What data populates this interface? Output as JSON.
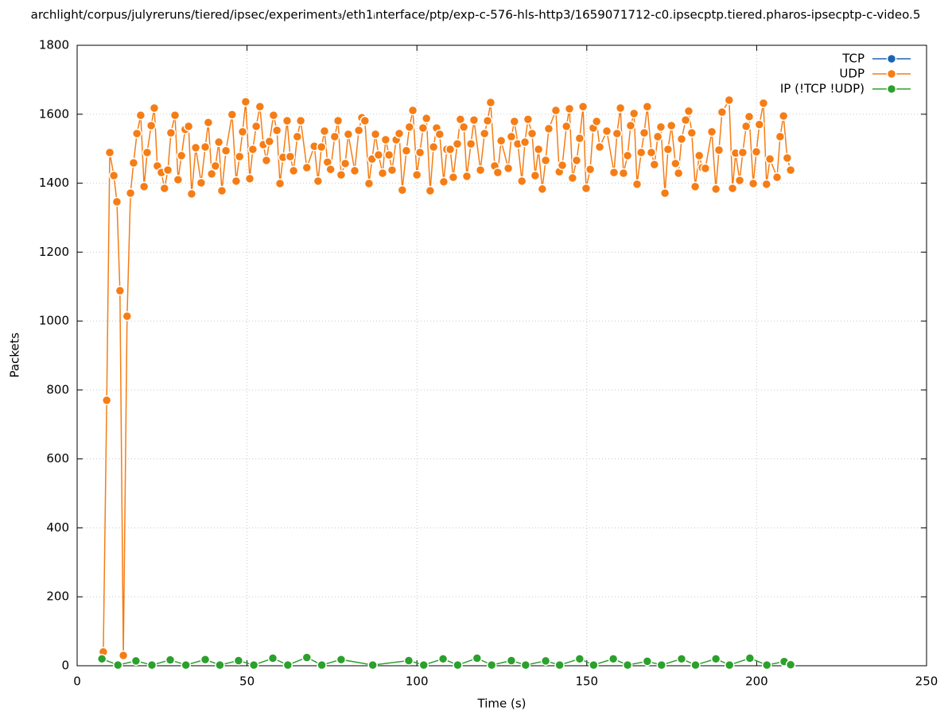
{
  "chart_data": {
    "type": "line",
    "title": "archlight/corpus/julyreruns/tiered/ipsec/experiment₃/eth1ᵢnterface/ptp/exp-c-576-hls-http3/1659071712-c0.ipsecptp.tiered.pharos-ipsecptp-c-video.5",
    "x_label": "Time (s)",
    "y_label": "Packets",
    "xlim": [
      0,
      250
    ],
    "xticks": [
      0,
      50,
      100,
      150,
      200,
      250
    ],
    "ylim": [
      0,
      1800
    ],
    "yticks": [
      0,
      200,
      400,
      600,
      800,
      1000,
      1200,
      1400,
      1600,
      1800
    ],
    "grid": true,
    "legend": "top right",
    "series": [
      {
        "name": "TCP",
        "color": "#1f63b0",
        "x": [],
        "values": []
      },
      {
        "name": "UDP",
        "color": "#f57d15",
        "x": [
          7.7,
          8.7,
          9.6,
          10.8,
          11.7,
          12.6,
          13.6,
          14.7,
          15.7,
          16.6,
          17.6,
          18.7,
          19.7,
          20.6,
          21.8,
          22.7,
          23.6,
          24.8,
          25.7,
          26.7,
          27.6,
          28.8,
          29.7,
          30.7,
          31.8,
          32.8,
          33.7,
          34.9,
          36.5,
          37.7,
          38.6,
          39.6,
          40.7,
          41.7,
          42.6,
          43.8,
          45.6,
          46.8,
          47.8,
          48.7,
          49.6,
          50.8,
          51.7,
          52.7,
          53.8,
          54.8,
          55.7,
          56.6,
          57.8,
          58.8,
          59.7,
          60.6,
          61.8,
          62.7,
          63.7,
          64.8,
          65.8,
          67.6,
          69.8,
          70.9,
          71.9,
          72.8,
          73.7,
          74.6,
          75.8,
          76.8,
          77.7,
          78.9,
          79.8,
          81.7,
          82.9,
          83.8,
          84.7,
          85.9,
          86.8,
          87.8,
          88.7,
          89.9,
          90.8,
          91.8,
          92.7,
          93.9,
          94.8,
          95.7,
          96.9,
          97.8,
          98.8,
          100,
          100.9,
          101.8,
          102.8,
          103.9,
          104.9,
          105.8,
          106.7,
          107.9,
          108.8,
          109.8,
          110.7,
          111.9,
          112.8,
          113.8,
          114.7,
          115.9,
          116.8,
          118.7,
          119.9,
          120.8,
          121.7,
          122.9,
          123.8,
          124.8,
          126.9,
          127.8,
          128.7,
          129.7,
          130.9,
          131.8,
          132.7,
          133.9,
          134.8,
          135.8,
          136.9,
          137.9,
          138.8,
          140.9,
          141.9,
          142.8,
          144.0,
          144.9,
          145.8,
          147.0,
          147.9,
          148.9,
          149.8,
          151.0,
          151.9,
          152.9,
          153.8,
          155.9,
          158.0,
          158.9,
          159.9,
          160.8,
          162.0,
          162.9,
          163.9,
          164.8,
          166.0,
          166.9,
          167.8,
          169.0,
          169.9,
          170.9,
          171.8,
          173.0,
          173.9,
          174.9,
          176.1,
          177.0,
          177.9,
          179.1,
          180.0,
          180.9,
          181.9,
          183.1,
          184.0,
          184.9,
          186.8,
          188.0,
          188.9,
          189.8,
          191.9,
          192.9,
          193.8,
          195.0,
          195.9,
          196.9,
          197.8,
          199.0,
          199.9,
          200.8,
          202.0,
          202.9,
          203.9,
          206.0,
          206.9,
          207.9,
          209.0,
          210.0
        ],
        "values": [
          40,
          770,
          1489,
          1422,
          1346,
          1088,
          30,
          1014,
          1371,
          1459,
          1544,
          1597,
          1390,
          1489,
          1567,
          1618,
          1450,
          1431,
          1385,
          1438,
          1546,
          1597,
          1410,
          1480,
          1556,
          1565,
          1369,
          1503,
          1401,
          1505,
          1576,
          1427,
          1450,
          1519,
          1378,
          1494,
          1599,
          1406,
          1477,
          1549,
          1636,
          1413,
          1498,
          1565,
          1622,
          1512,
          1466,
          1521,
          1597,
          1553,
          1399,
          1475,
          1581,
          1477,
          1436,
          1535,
          1581,
          1445,
          1507,
          1406,
          1505,
          1551,
          1461,
          1440,
          1535,
          1581,
          1424,
          1457,
          1542,
          1436,
          1553,
          1590,
          1581,
          1399,
          1470,
          1542,
          1482,
          1429,
          1526,
          1482,
          1438,
          1526,
          1544,
          1380,
          1494,
          1563,
          1611,
          1424,
          1489,
          1560,
          1588,
          1378,
          1505,
          1560,
          1542,
          1404,
          1498,
          1498,
          1417,
          1514,
          1585,
          1563,
          1420,
          1514,
          1583,
          1438,
          1544,
          1581,
          1634,
          1450,
          1431,
          1523,
          1443,
          1535,
          1579,
          1514,
          1406,
          1519,
          1585,
          1544,
          1422,
          1498,
          1383,
          1466,
          1558,
          1611,
          1433,
          1452,
          1565,
          1616,
          1415,
          1466,
          1530,
          1622,
          1385,
          1440,
          1560,
          1579,
          1505,
          1551,
          1431,
          1544,
          1618,
          1429,
          1480,
          1567,
          1602,
          1397,
          1489,
          1546,
          1622,
          1489,
          1454,
          1535,
          1563,
          1371,
          1498,
          1567,
          1457,
          1429,
          1528,
          1583,
          1609,
          1546,
          1390,
          1480,
          1445,
          1443,
          1549,
          1383,
          1496,
          1606,
          1641,
          1385,
          1487,
          1408,
          1489,
          1565,
          1593,
          1399,
          1491,
          1570,
          1632,
          1397,
          1470,
          1417,
          1535,
          1595,
          1473,
          1438
        ]
      },
      {
        "name": "IP (!TCP  !UDP)",
        "color": "#2ca02c",
        "x": [
          7.3,
          12,
          17.3,
          22,
          27.4,
          32,
          37.7,
          42,
          47.5,
          52,
          57.6,
          62,
          67.6,
          72,
          77.7,
          87,
          97.6,
          102,
          107.7,
          112,
          117.7,
          122,
          127.8,
          132,
          137.9,
          142,
          147.9,
          152,
          157.8,
          162,
          167.8,
          172,
          177.9,
          182,
          188,
          192,
          198,
          203,
          208.1,
          210
        ],
        "values": [
          20,
          2,
          14,
          2,
          17,
          2,
          18,
          2,
          15,
          2,
          22,
          2,
          24,
          2,
          18,
          2,
          15,
          2,
          20,
          2,
          22,
          2,
          15,
          2,
          14,
          2,
          20,
          2,
          20,
          2,
          13,
          2,
          20,
          2,
          20,
          2,
          22,
          2,
          12,
          3
        ]
      }
    ]
  }
}
